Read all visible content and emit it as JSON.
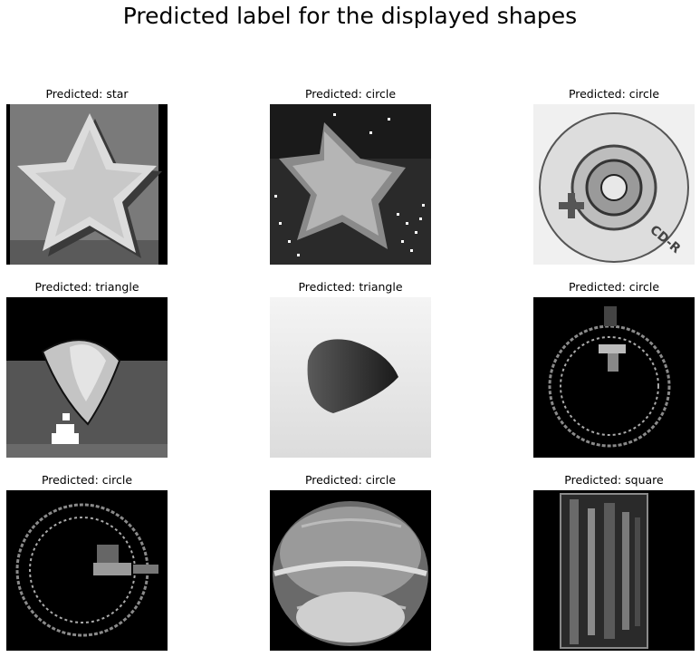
{
  "figure": {
    "title": "Predicted label for the displayed shapes",
    "panels": [
      {
        "title": "Predicted: star",
        "subject": "star"
      },
      {
        "title": "Predicted: circle",
        "subject": "star"
      },
      {
        "title": "Predicted: circle",
        "subject": "cd-disc"
      },
      {
        "title": "Predicted: triangle",
        "subject": "rounded-triangle"
      },
      {
        "title": "Predicted: triangle",
        "subject": "cone"
      },
      {
        "title": "Predicted: circle",
        "subject": "ring"
      },
      {
        "title": "Predicted: circle",
        "subject": "ring"
      },
      {
        "title": "Predicted: circle",
        "subject": "ball"
      },
      {
        "title": "Predicted: square",
        "subject": "cylinder"
      }
    ],
    "disc_text": "CD-R",
    "colormap": "grayscale"
  }
}
